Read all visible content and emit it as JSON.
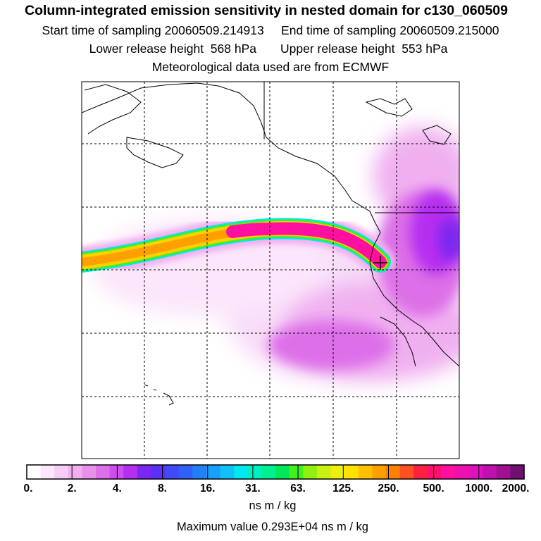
{
  "header": {
    "title": "Column-integrated emission sensitivity in nested domain for c130_060509",
    "sampling": "Start time of sampling 20060509.214913     End time of sampling 20060509.215000",
    "release": "Lower release height  568 hPa       Upper release height  553 hPa",
    "met": "Meteorological data used are from ECMWF"
  },
  "legend": {
    "tick_labels": [
      "0.",
      "2.",
      "4.",
      "8.",
      "16.",
      "31.",
      "63.",
      "125.",
      "250.",
      "500.",
      "1000.",
      "2000."
    ],
    "colors": [
      "#ffffff",
      "#fbe6fb",
      "#f6cdf6",
      "#f0b0f0",
      "#e890ec",
      "#dd6fe8",
      "#cf4cee",
      "#b52ff0",
      "#7a28f0",
      "#5a30f5",
      "#3f4af8",
      "#3060f8",
      "#2080f8",
      "#18a0f8",
      "#10c0f8",
      "#00e8f0",
      "#00f0c0",
      "#00f090",
      "#00e858",
      "#40f020",
      "#90f010",
      "#c8f010",
      "#f0f010",
      "#ffe000",
      "#ffc000",
      "#ffa000",
      "#ff8000",
      "#ff5020",
      "#ff2040",
      "#ff1070",
      "#ff10a0",
      "#f010b0",
      "#e010c0",
      "#c010b0",
      "#a01090",
      "#701070"
    ],
    "units": "ns m / kg",
    "max_value_text": "Maximum value  0.293E+04 ns m / kg"
  },
  "map": {
    "plume_colors": {
      "core": "#ff10a0",
      "yellow": "#ffd000",
      "orange": "#ffa000",
      "green": "#40f020",
      "cyan": "#00e8f0",
      "purple": "#b52ff0",
      "light": "#f0b0f0",
      "pale": "#f8dcf8",
      "source_marker": "#000000"
    }
  }
}
